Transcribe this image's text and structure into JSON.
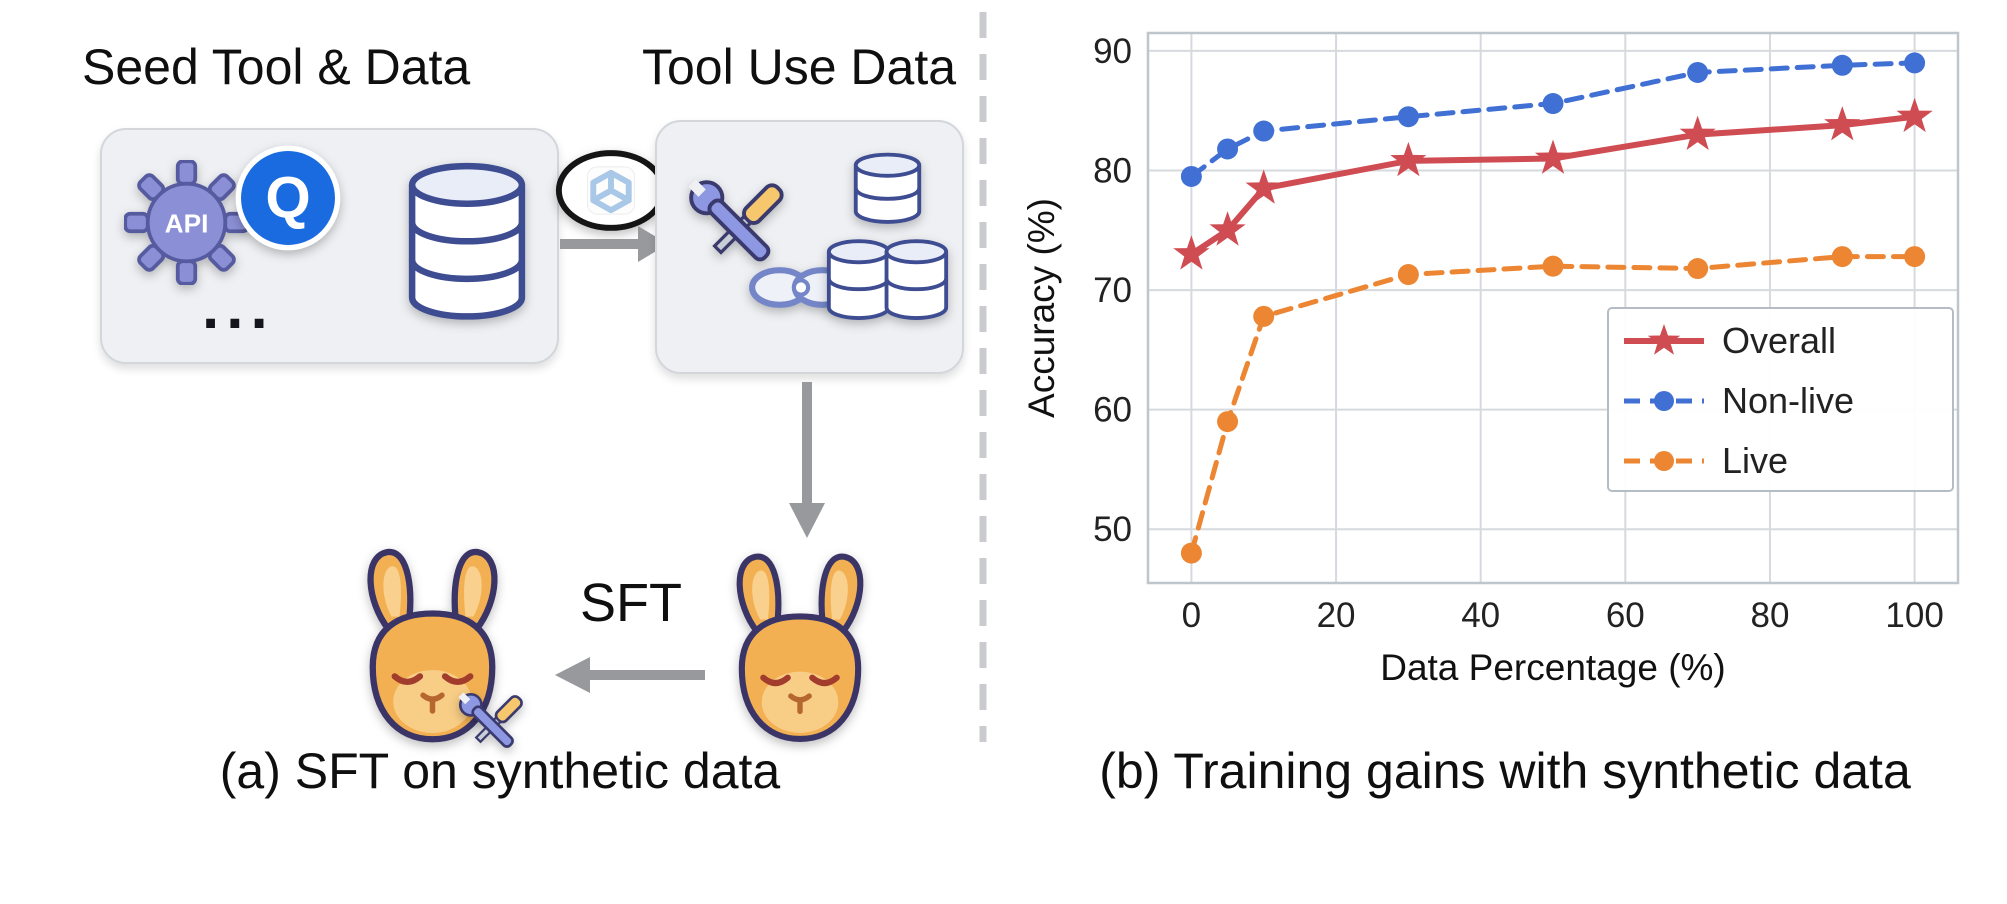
{
  "figure": {
    "panel_a": {
      "seed_label": "Seed Tool & Data",
      "tool_use_label": "Tool Use Data",
      "sft_label": "SFT",
      "caption": "(a) SFT on synthetic data",
      "api_gear_text": "API",
      "api_provider_letter": "Q",
      "ellipsis": "..."
    },
    "panel_b": {
      "caption": "(b) Training gains with synthetic data"
    }
  },
  "chart_data": {
    "type": "line",
    "x": [
      0,
      5,
      10,
      30,
      50,
      70,
      90,
      100
    ],
    "series": [
      {
        "name": "Overall",
        "values": [
          73.0,
          75.0,
          78.5,
          80.8,
          81.0,
          83.0,
          83.8,
          84.5
        ],
        "color": "#cf4c52",
        "marker": "star",
        "line": "solid",
        "width": 6,
        "dash": ""
      },
      {
        "name": "Non-live",
        "values": [
          79.5,
          81.8,
          83.3,
          84.5,
          85.6,
          88.2,
          88.8,
          89.0
        ],
        "color": "#4170d4",
        "marker": "circle",
        "line": "dashed",
        "width": 5,
        "dash": "16,10"
      },
      {
        "name": "Live",
        "values": [
          48.0,
          59.0,
          67.8,
          71.3,
          72.0,
          71.8,
          72.8,
          72.8
        ],
        "color": "#ec8633",
        "marker": "circle",
        "line": "dashed",
        "width": 5,
        "dash": "16,10"
      }
    ],
    "title": "",
    "xlabel": "Data Percentage (%)",
    "ylabel": "Accuracy (%)",
    "xticks": [
      0,
      20,
      40,
      60,
      80,
      100
    ],
    "yticks": [
      50,
      60,
      70,
      80,
      90
    ],
    "xlim": [
      -6,
      106
    ],
    "ylim": [
      45.5,
      91.5
    ],
    "grid": true,
    "legend_position": "right-center"
  }
}
